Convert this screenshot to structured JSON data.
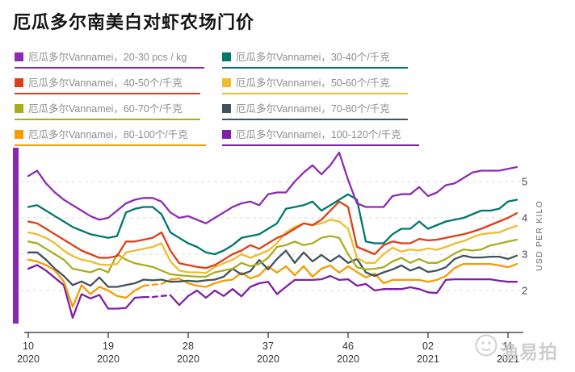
{
  "title": "厄瓜多尔南美白对虾农场门价",
  "accent_bar_color": "#8a28b2",
  "watermark": {
    "text": "渔易拍"
  },
  "legend": {
    "items": [
      {
        "label": "厄瓜多尔Vannamei，20-30 pcs / kg",
        "color": "#8e2bb4"
      },
      {
        "label": "厄瓜多尔Vannamei，30-40个/千克",
        "color": "#00776b"
      },
      {
        "label": "厄瓜多尔Vannamei，40-50个/千克",
        "color": "#df3e16"
      },
      {
        "label": "厄瓜多尔Vannamei，50-60个/千克",
        "color": "#efbc2f"
      },
      {
        "label": "厄瓜多尔Vannamei，60-70个/千克",
        "color": "#a8ae1f"
      },
      {
        "label": "厄瓜多尔Vannamei，70-80个/千克",
        "color": "#42525c"
      },
      {
        "label": "厄瓜多尔Vannamei，80-100个/千克",
        "color": "#f59c00"
      },
      {
        "label": "厄瓜多尔Vannamei，100-120个/千克",
        "color": "#7f1fa6"
      }
    ]
  },
  "chart_data": {
    "type": "line",
    "title": "厄瓜多尔南美白对虾农场门价",
    "ylabel": "USD PER KILO",
    "y_ticks": [
      2,
      3,
      4,
      5
    ],
    "ylim": [
      1.0,
      6.1
    ],
    "grid": "dashed-horizontal",
    "legend_position": "top",
    "axis_color": "#2b2b2b",
    "grid_color": "#d9d9d9",
    "x_ticks": [
      {
        "index": 0,
        "week": "10",
        "year": "2020"
      },
      {
        "index": 9,
        "week": "19",
        "year": "2020"
      },
      {
        "index": 18,
        "week": "28",
        "year": "2020"
      },
      {
        "index": 27,
        "week": "37",
        "year": "2020"
      },
      {
        "index": 36,
        "week": "46",
        "year": "2020"
      },
      {
        "index": 45,
        "week": "02",
        "year": "2021"
      },
      {
        "index": 54,
        "week": "11",
        "year": "2021"
      }
    ],
    "x_labels": [
      "2020-W10",
      "2020-W11",
      "2020-W12",
      "2020-W13",
      "2020-W14",
      "2020-W15",
      "2020-W16",
      "2020-W17",
      "2020-W18",
      "2020-W19",
      "2020-W20",
      "2020-W21",
      "2020-W22",
      "2020-W23",
      "2020-W24",
      "2020-W25",
      "2020-W26",
      "2020-W27",
      "2020-W28",
      "2020-W29",
      "2020-W30",
      "2020-W31",
      "2020-W32",
      "2020-W33",
      "2020-W34",
      "2020-W35",
      "2020-W36",
      "2020-W37",
      "2020-W38",
      "2020-W39",
      "2020-W40",
      "2020-W41",
      "2020-W42",
      "2020-W43",
      "2020-W44",
      "2020-W45",
      "2020-W46",
      "2020-W47",
      "2020-W48",
      "2020-W49",
      "2020-W50",
      "2020-W51",
      "2020-W52",
      "2020-W53",
      "2021-W01",
      "2021-W02",
      "2021-W03",
      "2021-W04",
      "2021-W05",
      "2021-W06",
      "2021-W07",
      "2021-W08",
      "2021-W09",
      "2021-W10",
      "2021-W11",
      "2021-W12"
    ],
    "series": [
      {
        "name": "厄瓜多尔Vannamei，20-30 pcs / kg",
        "size_grade": "20-30 pcs/kg",
        "color": "#8e2bb4",
        "values": [
          5.15,
          5.3,
          4.95,
          4.7,
          4.5,
          4.35,
          4.2,
          4.05,
          3.95,
          4.0,
          4.2,
          4.4,
          4.5,
          4.55,
          4.55,
          4.45,
          4.15,
          4.0,
          4.05,
          3.95,
          3.85,
          4.0,
          4.15,
          4.3,
          4.4,
          4.45,
          4.35,
          4.65,
          4.7,
          4.7,
          5.0,
          5.25,
          5.45,
          5.2,
          5.45,
          5.8,
          5.05,
          4.4,
          4.3,
          4.3,
          4.3,
          4.6,
          4.65,
          4.65,
          4.85,
          4.6,
          4.7,
          4.9,
          4.95,
          5.1,
          5.25,
          5.3,
          5.3,
          5.3,
          5.35,
          5.4
        ]
      },
      {
        "name": "厄瓜多尔Vannamei，30-40个/千克",
        "size_grade": "30-40个/千克",
        "color": "#00776b",
        "values": [
          4.3,
          4.35,
          4.2,
          4.05,
          3.9,
          3.75,
          3.65,
          3.55,
          3.5,
          3.45,
          3.5,
          4.15,
          4.25,
          4.3,
          4.3,
          4.1,
          3.6,
          3.45,
          3.3,
          3.2,
          3.05,
          3.0,
          3.1,
          3.25,
          3.45,
          3.5,
          3.55,
          3.7,
          3.85,
          4.25,
          4.3,
          4.35,
          4.45,
          4.2,
          4.35,
          4.5,
          4.65,
          4.5,
          3.35,
          3.3,
          3.3,
          3.55,
          3.7,
          3.7,
          3.9,
          3.7,
          3.8,
          3.9,
          3.95,
          4.0,
          4.1,
          4.2,
          4.2,
          4.25,
          4.45,
          4.5
        ]
      },
      {
        "name": "厄瓜多尔Vannamei，40-50个/千克",
        "size_grade": "40-50个/千克",
        "color": "#df3e16",
        "values": [
          3.9,
          3.85,
          3.7,
          3.55,
          3.4,
          3.25,
          3.1,
          3.0,
          2.9,
          2.9,
          2.95,
          3.35,
          3.35,
          3.4,
          3.45,
          3.6,
          3.1,
          2.75,
          2.7,
          2.65,
          2.62,
          2.7,
          2.85,
          3.0,
          3.1,
          3.25,
          3.15,
          3.3,
          3.45,
          3.55,
          3.7,
          3.85,
          3.8,
          3.95,
          4.2,
          4.45,
          4.3,
          3.2,
          3.1,
          3.0,
          3.25,
          3.35,
          3.3,
          3.3,
          3.42,
          3.38,
          3.4,
          3.45,
          3.5,
          3.55,
          3.62,
          3.7,
          3.8,
          3.9,
          4.0,
          4.13
        ]
      },
      {
        "name": "厄瓜多尔Vannamei，50-60个/千克",
        "size_grade": "50-60个/千克",
        "color": "#efbc2f",
        "values": [
          3.6,
          3.55,
          3.45,
          3.3,
          3.1,
          2.95,
          2.85,
          2.8,
          2.72,
          2.7,
          2.73,
          3.05,
          3.1,
          3.15,
          3.2,
          3.3,
          2.8,
          2.55,
          2.5,
          2.5,
          2.48,
          2.65,
          2.75,
          2.85,
          3.0,
          2.9,
          3.0,
          3.1,
          3.3,
          3.6,
          3.75,
          3.85,
          3.8,
          3.85,
          3.95,
          3.9,
          3.7,
          2.9,
          2.76,
          2.76,
          3.0,
          3.18,
          3.07,
          3.13,
          3.1,
          3.16,
          3.12,
          3.2,
          3.29,
          3.36,
          3.47,
          3.55,
          3.58,
          3.6,
          3.7,
          3.78
        ]
      },
      {
        "name": "厄瓜多尔Vannamei，60-70个/千克",
        "size_grade": "60-70个/千克",
        "color": "#a8ae1f",
        "values": [
          3.35,
          3.3,
          3.15,
          3.0,
          2.85,
          2.6,
          2.55,
          2.5,
          2.6,
          2.5,
          3.0,
          2.85,
          2.75,
          2.7,
          2.65,
          2.55,
          2.45,
          2.42,
          2.4,
          2.38,
          2.38,
          2.5,
          2.55,
          2.6,
          2.76,
          2.67,
          2.73,
          2.9,
          3.2,
          3.25,
          3.35,
          3.25,
          3.3,
          3.45,
          3.5,
          3.45,
          3.0,
          2.64,
          2.58,
          2.6,
          2.64,
          2.8,
          2.9,
          2.76,
          2.87,
          2.76,
          2.76,
          2.87,
          3.02,
          3.13,
          3.1,
          3.13,
          3.24,
          3.29,
          3.35,
          3.4
        ]
      },
      {
        "name": "厄瓜多尔Vannamei，70-80个/千克",
        "size_grade": "70-80个/千克",
        "color": "#42525c",
        "values": [
          3.05,
          3.05,
          2.85,
          2.6,
          2.4,
          2.15,
          2.25,
          2.13,
          2.36,
          2.1,
          2.1,
          2.15,
          2.2,
          2.3,
          2.28,
          2.3,
          2.24,
          2.25,
          2.27,
          2.25,
          2.28,
          2.3,
          2.38,
          2.6,
          2.44,
          2.53,
          2.84,
          2.58,
          2.87,
          3.1,
          2.76,
          3.05,
          2.8,
          2.98,
          2.8,
          2.96,
          2.76,
          2.87,
          2.5,
          2.4,
          2.5,
          2.58,
          2.69,
          2.55,
          2.64,
          2.51,
          2.55,
          2.64,
          2.87,
          2.96,
          2.91,
          2.91,
          2.93,
          2.93,
          2.87,
          2.96
        ]
      },
      {
        "name": "厄瓜多尔Vannamei，80-100个/千克",
        "size_grade": "80-100个/千克",
        "color": "#f59c00",
        "dashed_segment": [
          13,
          16
        ],
        "values": [
          2.85,
          2.8,
          2.7,
          2.55,
          2.25,
          1.55,
          2.15,
          1.9,
          2.1,
          2.0,
          1.85,
          1.8,
          2.0,
          2.13,
          2.16,
          2.18,
          2.3,
          2.33,
          2.2,
          2.13,
          2.1,
          2.2,
          2.27,
          2.3,
          2.49,
          2.33,
          2.42,
          2.67,
          2.49,
          2.67,
          2.42,
          2.67,
          2.38,
          2.6,
          2.69,
          2.49,
          2.67,
          2.51,
          2.36,
          2.47,
          2.2,
          2.29,
          2.29,
          2.29,
          2.29,
          2.24,
          2.29,
          2.4,
          2.62,
          2.73,
          2.73,
          2.73,
          2.73,
          2.69,
          2.64,
          2.73
        ]
      },
      {
        "name": "厄瓜多尔Vannamei，100-120个/千克",
        "size_grade": "100-120个/千克",
        "color": "#7f1fa6",
        "dashed_segment": [
          13,
          16
        ],
        "values": [
          2.6,
          2.7,
          2.55,
          2.35,
          2.15,
          1.25,
          1.9,
          1.78,
          1.88,
          1.5,
          1.5,
          1.52,
          1.8,
          1.82,
          1.82,
          1.85,
          1.87,
          1.6,
          1.85,
          2.0,
          1.8,
          2.0,
          1.85,
          2.04,
          1.84,
          2.1,
          2.2,
          2.24,
          1.9,
          2.1,
          2.29,
          2.29,
          2.29,
          2.31,
          2.4,
          2.29,
          2.31,
          2.13,
          2.18,
          2.0,
          2.04,
          2.04,
          2.04,
          2.09,
          2.04,
          1.95,
          1.93,
          2.29,
          2.31,
          2.31,
          2.31,
          2.31,
          2.31,
          2.27,
          2.24,
          2.24
        ]
      }
    ]
  }
}
